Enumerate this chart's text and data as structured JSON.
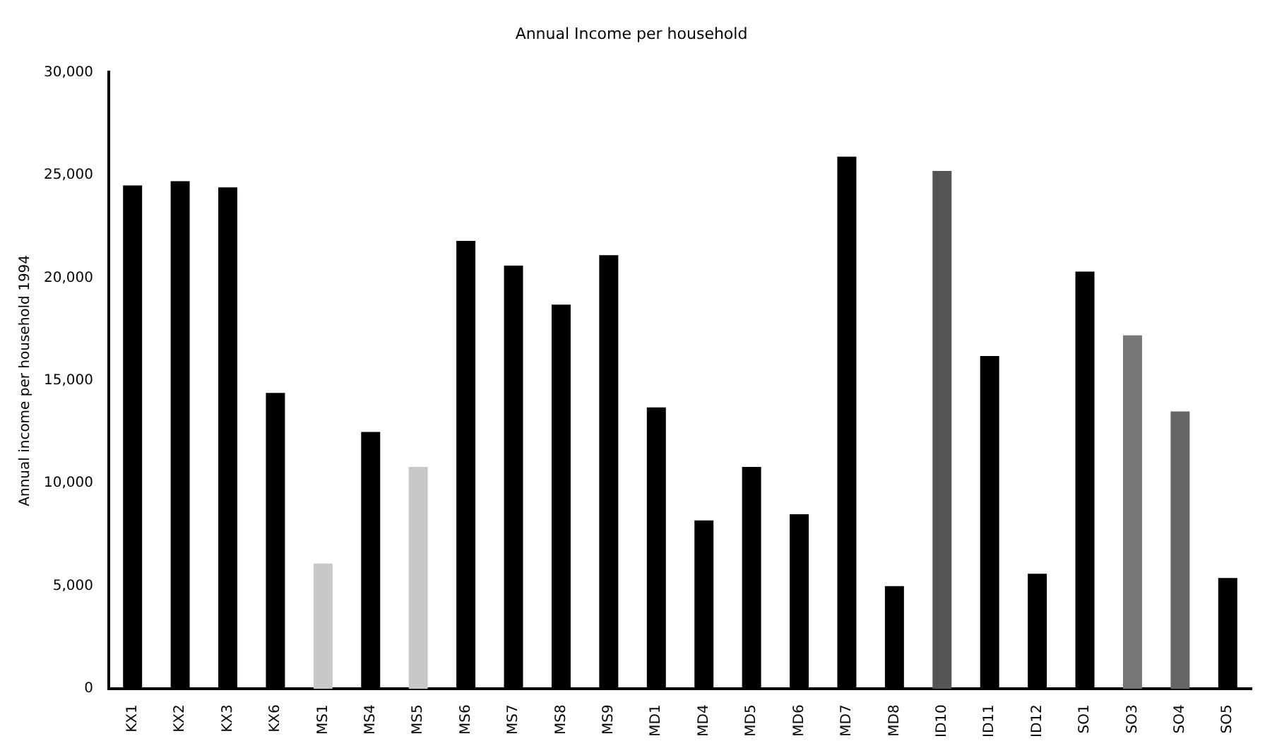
{
  "chart_data": {
    "type": "bar",
    "title": "Annual Income per household",
    "ylabel": "Annual income per household 1994",
    "categories": [
      "KX1",
      "KX2",
      "KX3",
      "KX6",
      "MS1",
      "MS4",
      "MS5",
      "MS6",
      "MS7",
      "MS8",
      "MS9",
      "MD1",
      "MD4",
      "MD5",
      "MD6",
      "MD7",
      "MD8",
      "ID10",
      "ID11",
      "ID12",
      "SO1",
      "SO3",
      "SO4",
      "SO5"
    ],
    "values": [
      24500,
      24700,
      24400,
      14400,
      6100,
      12500,
      10800,
      21800,
      20600,
      18700,
      21100,
      13700,
      8200,
      10800,
      8500,
      25900,
      5000,
      25200,
      16200,
      5600,
      20300,
      17200,
      13500,
      5400
    ],
    "colors": [
      "#000000",
      "#000000",
      "#000000",
      "#000000",
      "#c8c8c8",
      "#000000",
      "#c8c8c8",
      "#000000",
      "#000000",
      "#000000",
      "#000000",
      "#000000",
      "#000000",
      "#000000",
      "#000000",
      "#000000",
      "#000000",
      "#555555",
      "#000000",
      "#000000",
      "#000000",
      "#777777",
      "#666666",
      "#000000"
    ],
    "ylim": [
      0,
      30000
    ],
    "yticks": [
      {
        "value": 0,
        "label": "0"
      },
      {
        "value": 5000,
        "label": "5,000"
      },
      {
        "value": 10000,
        "label": "10,000"
      },
      {
        "value": 15000,
        "label": "15,000"
      },
      {
        "value": 20000,
        "label": "20,000"
      },
      {
        "value": 25000,
        "label": "25,000"
      },
      {
        "value": 30000,
        "label": "30,000"
      }
    ],
    "grid": false,
    "legend": false
  }
}
